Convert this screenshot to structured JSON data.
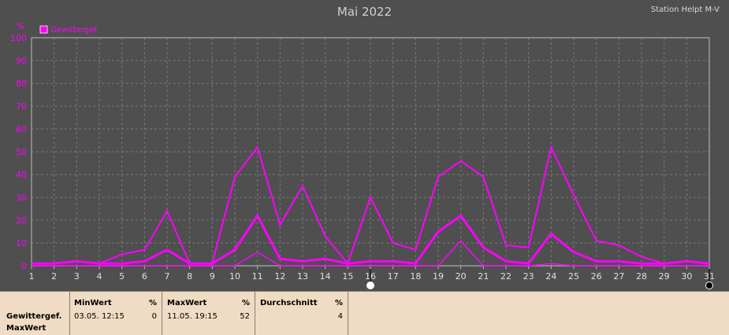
{
  "header": {
    "title": "Mai 2022",
    "station": "Station Helpt M-V"
  },
  "legend": {
    "label": "Gewittergef.",
    "color": "#ff00ff"
  },
  "chart_data": {
    "type": "line",
    "title": "Mai 2022",
    "ylabel": "%",
    "ylim": [
      0,
      100
    ],
    "yticks": [
      0,
      10,
      20,
      30,
      40,
      50,
      60,
      70,
      80,
      90,
      100
    ],
    "x": [
      1,
      2,
      3,
      4,
      5,
      6,
      7,
      8,
      9,
      10,
      11,
      12,
      13,
      14,
      15,
      16,
      17,
      18,
      19,
      20,
      21,
      22,
      23,
      24,
      25,
      26,
      27,
      28,
      29,
      30,
      31
    ],
    "series": [
      {
        "name": "Gewittergef.",
        "role": "max",
        "values": [
          1,
          1,
          2,
          1,
          5,
          7,
          24,
          1,
          1,
          39,
          52,
          18,
          35,
          13,
          1,
          30,
          10,
          7,
          39,
          46,
          39,
          9,
          8,
          52,
          31,
          11,
          9,
          4,
          1,
          2,
          1
        ]
      },
      {
        "role": "mean",
        "values": [
          1,
          1,
          2,
          1,
          1,
          2,
          7,
          1,
          1,
          7,
          22,
          3,
          2,
          3,
          1,
          2,
          2,
          1,
          15,
          22,
          8,
          2,
          1,
          14,
          6,
          2,
          2,
          1,
          1,
          2,
          1
        ]
      },
      {
        "role": "min",
        "values": [
          0,
          0,
          0,
          0,
          0,
          0,
          0,
          0,
          0,
          0,
          6,
          0,
          0,
          0,
          0,
          0,
          0,
          0,
          0,
          11,
          0,
          0,
          0,
          1,
          0,
          0,
          0,
          0,
          0,
          0,
          0
        ]
      }
    ],
    "grid": true,
    "legend": "top-left",
    "color": "#ff00ff"
  },
  "footer": {
    "row_label_1": "Gewittergef.",
    "row_label_2": "MaxWert",
    "min": {
      "label": "MinWert",
      "unit": "%",
      "date": "03.05.  12:15",
      "value": "0"
    },
    "max": {
      "label": "MaxWert",
      "unit": "%",
      "date": "11.05.  19:15",
      "value": "52"
    },
    "avg": {
      "label": "Durchschnitt",
      "unit": "%",
      "value": "4"
    }
  }
}
